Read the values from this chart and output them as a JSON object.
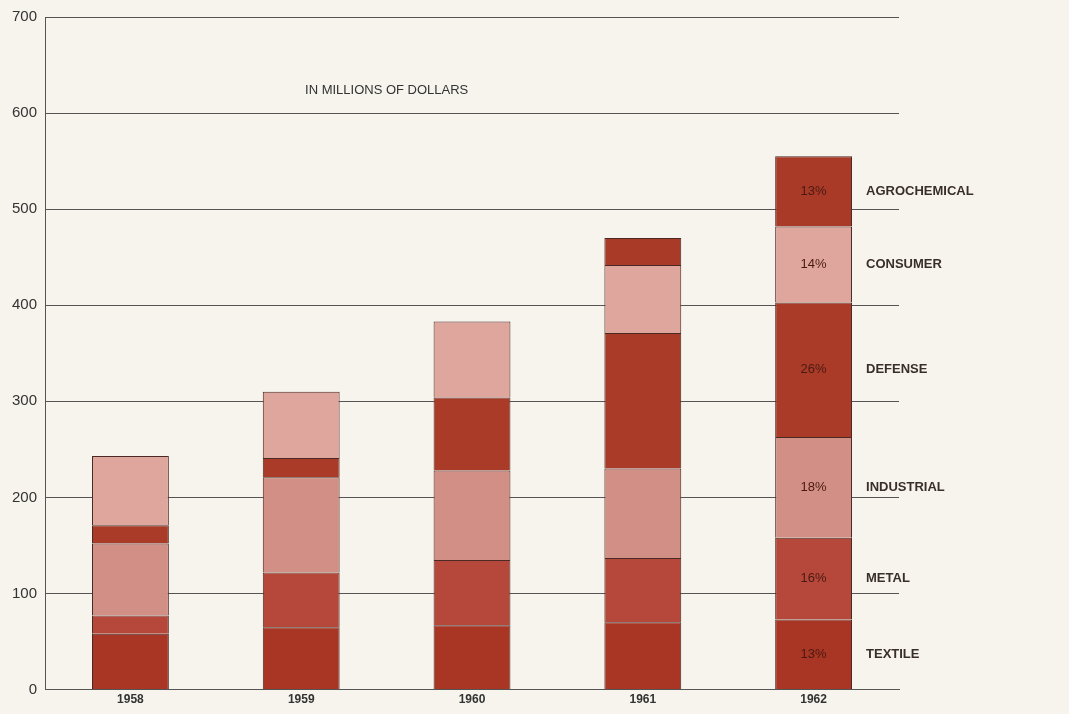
{
  "chart_data": {
    "type": "bar",
    "stacked": true,
    "categories": [
      "1958",
      "1959",
      "1960",
      "1961",
      "1962"
    ],
    "series": [
      {
        "name": "TEXTILE",
        "color": "#a93524",
        "values": [
          58,
          65,
          67,
          70,
          73
        ]
      },
      {
        "name": "METAL",
        "color": "#b5483a",
        "values": [
          19,
          57,
          68,
          67,
          85
        ]
      },
      {
        "name": "INDUSTRIAL",
        "color": "#d28f85",
        "values": [
          75,
          99,
          93,
          93,
          105
        ]
      },
      {
        "name": "DEFENSE",
        "color": "#a93b28",
        "values": [
          19,
          20,
          76,
          141,
          140
        ]
      },
      {
        "name": "CONSUMER",
        "color": "#dfa69e",
        "values": [
          72,
          69,
          79,
          71,
          79
        ]
      },
      {
        "name": "AGROCHEMICAL",
        "color": "#a93a27",
        "values": [
          null,
          null,
          null,
          28,
          73
        ]
      }
    ],
    "ylim": [
      0,
      700
    ],
    "yticks": [
      0,
      100,
      200,
      300,
      400,
      500,
      600,
      700
    ],
    "grid": "y",
    "legend": false,
    "annotations": [
      "IN MILLIONS OF DOLLARS",
      "13%",
      "16%",
      "18%",
      "26%",
      "14%",
      "13%"
    ]
  }
}
